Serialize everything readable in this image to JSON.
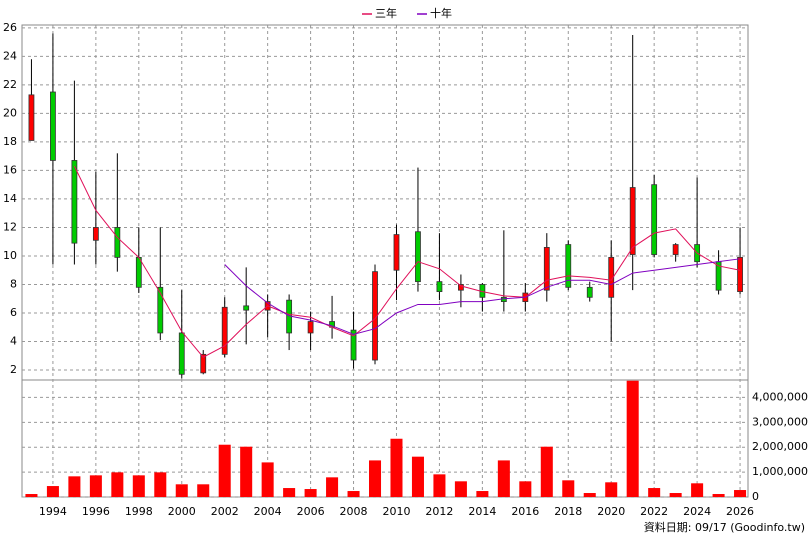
{
  "chart_data": {
    "type": "candlestick",
    "x": [
      1993,
      1994,
      1995,
      1996,
      1997,
      1998,
      1999,
      2000,
      2001,
      2002,
      2003,
      2004,
      2005,
      2006,
      2007,
      2008,
      2009,
      2010,
      2011,
      2012,
      2013,
      2014,
      2015,
      2016,
      2017,
      2018,
      2019,
      2020,
      2021,
      2022,
      2023,
      2024,
      2025,
      2026
    ],
    "open": [
      18.1,
      21.5,
      16.7,
      11.1,
      12.0,
      9.9,
      7.8,
      4.6,
      1.8,
      3.1,
      6.5,
      6.2,
      6.9,
      4.6,
      5.4,
      4.8,
      2.7,
      9.0,
      11.7,
      8.2,
      7.6,
      8.0,
      7.1,
      6.8,
      7.6,
      10.8,
      7.8,
      7.1,
      10.1,
      15.0,
      10.1,
      10.8,
      9.6,
      7.5
    ],
    "high": [
      23.8,
      25.6,
      22.3,
      15.9,
      17.2,
      12.0,
      12.0,
      7.6,
      3.4,
      7.1,
      9.2,
      7.3,
      7.3,
      6.1,
      7.2,
      6.1,
      9.4,
      12.2,
      16.2,
      11.6,
      8.7,
      8.1,
      11.8,
      8.1,
      11.6,
      11.1,
      8.2,
      11.1,
      25.5,
      15.7,
      10.9,
      15.5,
      10.4,
      12.0
    ],
    "low": [
      18.1,
      9.4,
      9.4,
      9.4,
      8.9,
      7.4,
      4.1,
      1.4,
      1.7,
      2.9,
      3.8,
      4.3,
      3.4,
      3.4,
      4.2,
      2.1,
      2.4,
      6.9,
      7.5,
      6.9,
      6.4,
      6.1,
      6.1,
      6.1,
      6.8,
      7.6,
      6.8,
      4.0,
      7.6,
      9.9,
      9.6,
      9.2,
      7.3,
      7.3
    ],
    "close": [
      21.3,
      16.7,
      10.9,
      12.0,
      9.9,
      7.8,
      4.6,
      1.7,
      3.1,
      6.4,
      6.2,
      6.8,
      4.6,
      5.4,
      5.0,
      2.7,
      8.9,
      11.5,
      8.2,
      7.5,
      8.0,
      7.1,
      6.8,
      7.4,
      10.6,
      7.8,
      7.1,
      9.9,
      14.8,
      10.1,
      10.8,
      9.6,
      7.6,
      9.9
    ],
    "up_color": "#ff0000",
    "down_color": "#00cc00",
    "series": [
      {
        "name": "三年",
        "color": "#e0105a",
        "values": [
          null,
          null,
          16.3,
          13.2,
          11.3,
          9.9,
          7.4,
          4.7,
          2.9,
          3.7,
          5.2,
          6.5,
          5.9,
          5.7,
          5.0,
          4.4,
          5.6,
          7.7,
          9.6,
          9.1,
          7.9,
          7.5,
          7.2,
          7.1,
          8.3,
          8.6,
          8.5,
          8.3,
          10.6,
          11.6,
          11.9,
          10.2,
          9.3,
          9.0
        ]
      },
      {
        "name": "十年",
        "color": "#8000c0",
        "values": [
          null,
          null,
          null,
          null,
          null,
          null,
          null,
          null,
          null,
          9.4,
          7.9,
          6.7,
          5.8,
          5.5,
          5.1,
          4.5,
          4.9,
          6.0,
          6.6,
          6.6,
          6.8,
          6.8,
          7.0,
          7.1,
          7.8,
          8.3,
          8.3,
          8.0,
          8.8,
          9.0,
          9.2,
          9.4,
          9.6,
          9.8
        ]
      }
    ],
    "volume": {
      "color": "#ff0000",
      "axis": "y2",
      "values": [
        120000,
        440000,
        830000,
        870000,
        990000,
        870000,
        990000,
        510000,
        510000,
        2100000,
        2020000,
        1390000,
        360000,
        320000,
        790000,
        240000,
        1470000,
        2340000,
        1620000,
        910000,
        630000,
        240000,
        1470000,
        630000,
        2020000,
        670000,
        160000,
        590000,
        4670000,
        360000,
        160000,
        550000,
        120000,
        280000
      ]
    },
    "xlim": [
      1992.56,
      2026.37
    ],
    "xticks": [
      1994,
      1996,
      1998,
      2000,
      2002,
      2004,
      2006,
      2008,
      2010,
      2012,
      2014,
      2016,
      2018,
      2020,
      2022,
      2024,
      2026
    ],
    "ylim": [
      1.3,
      26.2
    ],
    "yticks": [
      2,
      4,
      6,
      8,
      10,
      12,
      14,
      16,
      18,
      20,
      22,
      24,
      26
    ],
    "y2lim": [
      0,
      4700000
    ],
    "y2ticks": [
      0,
      {
        "value": 1000000,
        "label": "1,000,000"
      },
      {
        "value": 2000000,
        "label": "2,000,000"
      },
      {
        "value": 3000000,
        "label": "3,000,000"
      },
      {
        "value": 4000000,
        "label": "4,000,000"
      }
    ],
    "grid": true,
    "legend": "top",
    "footnote": "資料日期: 09/17 (Goodinfo.tw)"
  }
}
